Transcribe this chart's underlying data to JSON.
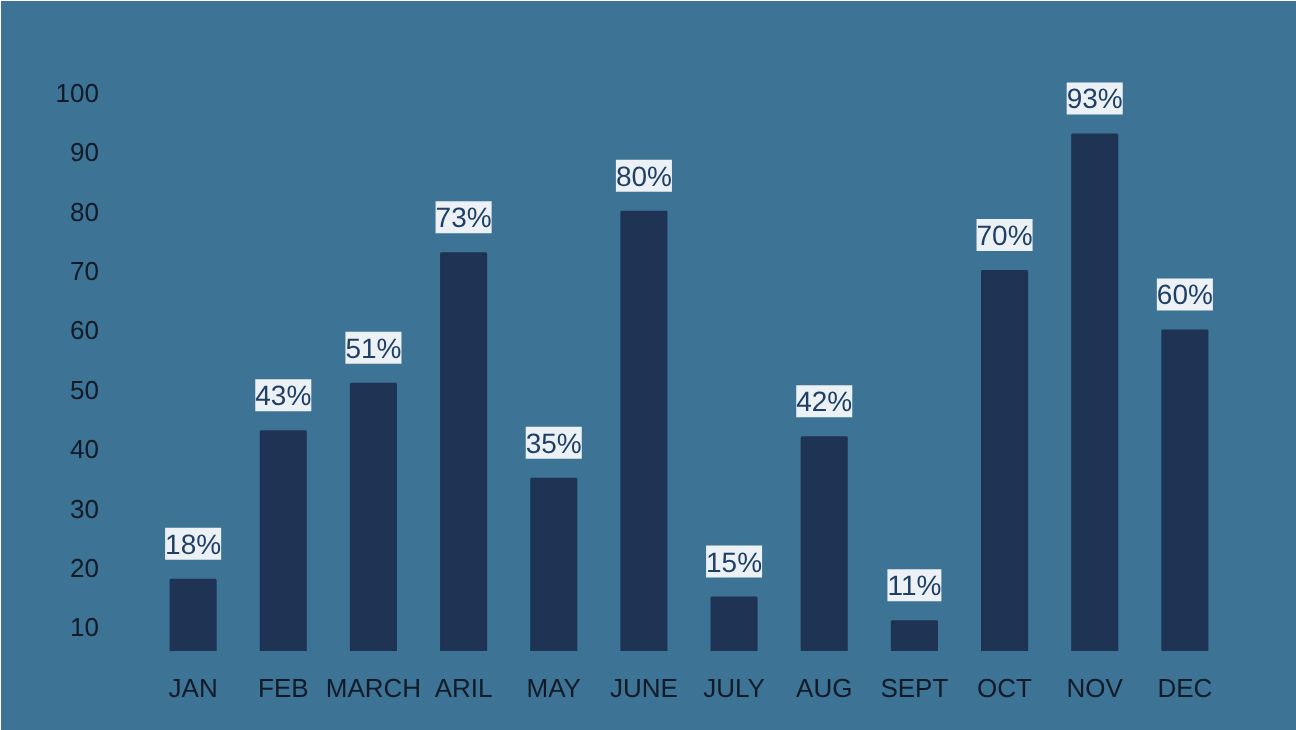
{
  "chart_data": {
    "type": "bar",
    "categories": [
      "JAN",
      "FEB",
      "MARCH",
      "ARIL",
      "MAY",
      "JUNE",
      "JULY",
      "AUG",
      "SEPT",
      "OCT",
      "NOV",
      "DEC"
    ],
    "values": [
      18,
      43,
      51,
      73,
      35,
      80,
      15,
      42,
      11,
      70,
      93,
      60
    ],
    "value_labels": [
      "18%",
      "43%",
      "51%",
      "73%",
      "35%",
      "80%",
      "15%",
      "42%",
      "11%",
      "70%",
      "93%",
      "60%"
    ],
    "color": "#1f3355",
    "ylim": [
      6,
      102
    ],
    "yticks": [
      10,
      20,
      30,
      40,
      50,
      60,
      70,
      80,
      90,
      100
    ],
    "grid": false
  }
}
